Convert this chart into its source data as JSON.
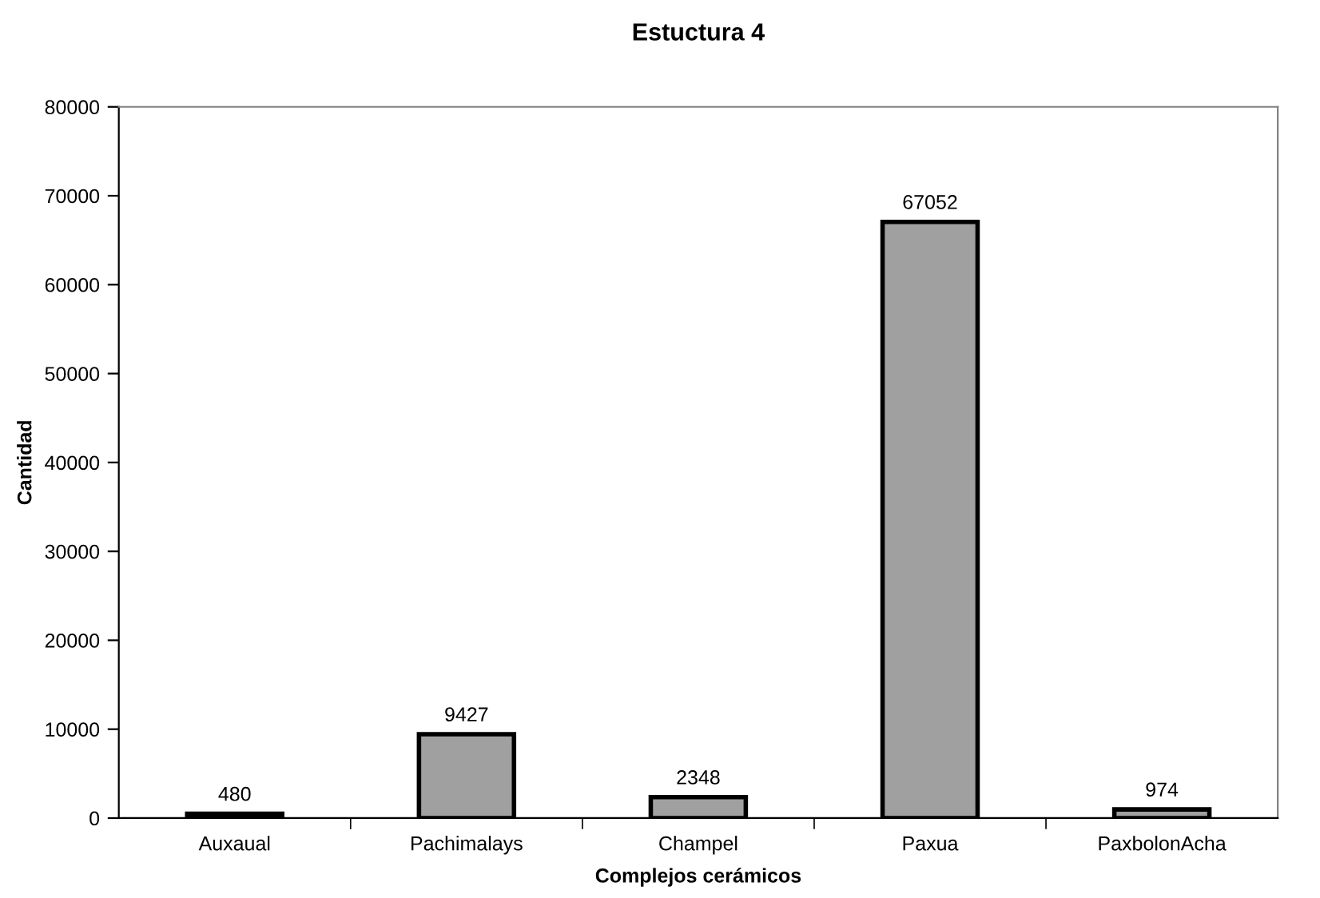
{
  "chart_data": {
    "type": "bar",
    "title": "Estuctura 4",
    "xlabel": "Complejos cerámicos",
    "ylabel": "Cantidad",
    "categories": [
      "Auxaual",
      "Pachimalays",
      "Champel",
      "Paxua",
      "PaxbolonAcha"
    ],
    "values": [
      480,
      9427,
      2348,
      67052,
      974
    ],
    "color": "#a0a0a0",
    "ylim": [
      0,
      80000
    ],
    "yticks": [
      0,
      10000,
      20000,
      30000,
      40000,
      50000,
      60000,
      70000,
      80000
    ],
    "data_labels": true,
    "grid": false,
    "legend": false
  }
}
